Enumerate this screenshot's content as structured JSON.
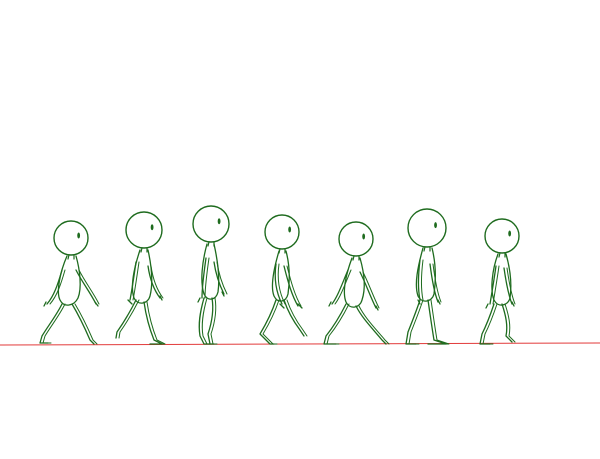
{
  "colors": {
    "background": "#ffffff",
    "figure_outline": "#1e6b1e",
    "ground_line": "#e23a3a"
  },
  "figures": [
    {
      "pose": "contact",
      "head_facing": "right"
    },
    {
      "pose": "down",
      "head_facing": "right"
    },
    {
      "pose": "passing",
      "head_facing": "right"
    },
    {
      "pose": "up",
      "head_facing": "right"
    },
    {
      "pose": "contact",
      "head_facing": "right"
    },
    {
      "pose": "down",
      "head_facing": "right"
    },
    {
      "pose": "passing",
      "head_facing": "right"
    }
  ]
}
